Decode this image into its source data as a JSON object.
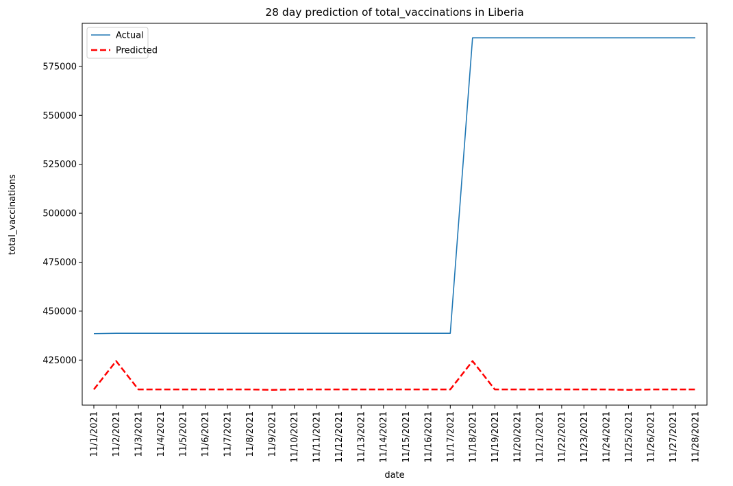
{
  "chart_data": {
    "type": "line",
    "title": "28 day prediction of total_vaccinations in Liberia",
    "xlabel": "date",
    "ylabel": "total_vaccinations",
    "categories": [
      "11/1/2021",
      "11/2/2021",
      "11/3/2021",
      "11/4/2021",
      "11/5/2021",
      "11/6/2021",
      "11/7/2021",
      "11/8/2021",
      "11/9/2021",
      "11/10/2021",
      "11/11/2021",
      "11/12/2021",
      "11/13/2021",
      "11/14/2021",
      "11/15/2021",
      "11/16/2021",
      "11/17/2021",
      "11/18/2021",
      "11/19/2021",
      "11/20/2021",
      "11/21/2021",
      "11/22/2021",
      "11/23/2021",
      "11/24/2021",
      "11/25/2021",
      "11/26/2021",
      "11/27/2021",
      "11/28/2021"
    ],
    "ylim": [
      402000,
      597000
    ],
    "yticks": [
      425000,
      450000,
      475000,
      500000,
      525000,
      550000,
      575000
    ],
    "grid": false,
    "legend_position": "top-left",
    "series": [
      {
        "name": "Actual",
        "color": "#1f77b4",
        "style": "solid",
        "values": [
          438500,
          438700,
          438700,
          438700,
          438700,
          438700,
          438700,
          438700,
          438700,
          438700,
          438700,
          438700,
          438700,
          438700,
          438700,
          438700,
          438700,
          589600,
          589600,
          589600,
          589600,
          589600,
          589600,
          589600,
          589600,
          589600,
          589600,
          589600
        ]
      },
      {
        "name": "Predicted",
        "color": "#ff0000",
        "style": "dashed",
        "values": [
          410000,
          424500,
          410000,
          410000,
          410000,
          410000,
          410000,
          410000,
          409800,
          410000,
          410000,
          410000,
          410000,
          410000,
          410000,
          410000,
          410000,
          424500,
          410000,
          410000,
          410000,
          410000,
          410000,
          410000,
          409800,
          410000,
          410000,
          410000
        ]
      }
    ]
  }
}
